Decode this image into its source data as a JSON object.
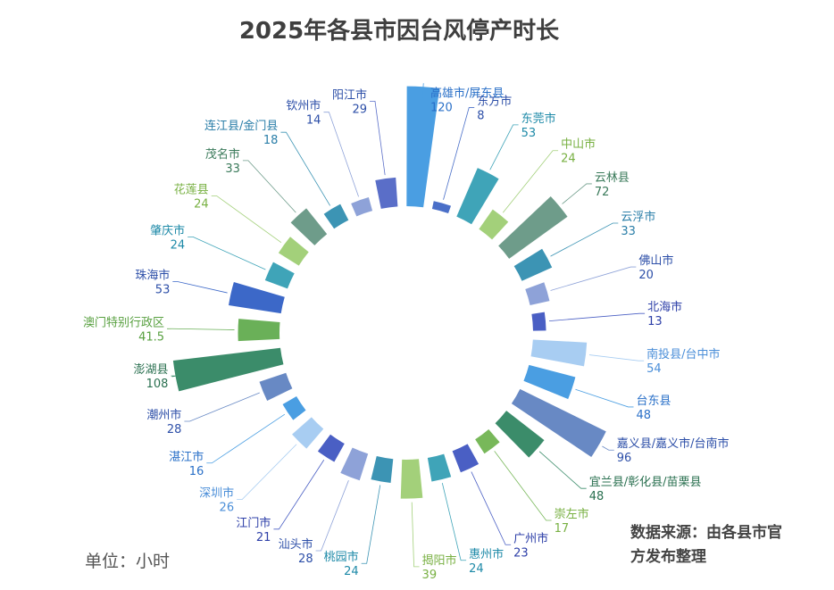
{
  "title": "2025年各县市因台风停产时长",
  "unit_note": "单位：小时",
  "source_note": "数据来源：由各县市官方发布整理",
  "chart_data": {
    "type": "bar",
    "layout": "radial",
    "title": "2025年各县市因台风停产时长",
    "unit": "小时",
    "categories": [
      "东方市",
      "东莞市",
      "中山市",
      "云林县",
      "云浮市",
      "佛山市",
      "北海市",
      "南投县/台中市",
      "台东县",
      "嘉义县/嘉义市/台南市",
      "宜兰县/彰化县/苗栗县",
      "崇左市",
      "广州市",
      "惠州市",
      "揭阳市",
      "桃园市",
      "汕头市",
      "江门市",
      "深圳市",
      "湛江市",
      "潮州市",
      "澎湖县",
      "澳门特别行政区",
      "珠海市",
      "肇庆市",
      "花莲县",
      "茂名市",
      "连江县/金门县",
      "钦州市",
      "阳江市",
      "高雄市/屏东县"
    ],
    "values": [
      8,
      53,
      24,
      72,
      33,
      20,
      13,
      54,
      48,
      96,
      48,
      17,
      23,
      24,
      39,
      24,
      28,
      21,
      26,
      16,
      28,
      108,
      41.5,
      53,
      24,
      24,
      33,
      18,
      14,
      29,
      120
    ],
    "colors": [
      "#4a6fc8",
      "#3fa4b8",
      "#a3d07a",
      "#6e9c8a",
      "#3c94b4",
      "#8ea2d8",
      "#4a5fc4",
      "#a8cdf2",
      "#4a9ee2",
      "#6889c4",
      "#3b8c6a",
      "#78b85a",
      "#4a5fc4",
      "#3fa4b8",
      "#a3d07a",
      "#3c94b4",
      "#8ea2d8",
      "#4a5fc4",
      "#a8cdf2",
      "#4a9ee2",
      "#6889c4",
      "#3b8c6a",
      "#6ab058",
      "#3c68c8",
      "#3fa4b8",
      "#a3d07a",
      "#6e9c8a",
      "#3c94b4",
      "#8ea2d8",
      "#5a6ec8",
      "#4a9ee2"
    ],
    "label_colors": [
      "#2d4fa8",
      "#1e8aa8",
      "#78b042",
      "#3a7a5a",
      "#2a7ea8",
      "#2d4fa8",
      "#2d3fa8",
      "#4a8ed8",
      "#2a70c8",
      "#2d4fa8",
      "#2a7050",
      "#78b042",
      "#2d3fa8",
      "#1e8aa8",
      "#78b042",
      "#1e8aa8",
      "#2d4fa8",
      "#2d3fa8",
      "#4a8ed8",
      "#2a70c8",
      "#2d4fa8",
      "#2a7050",
      "#58a040",
      "#2d4fa8",
      "#1e8aa8",
      "#78b042",
      "#3a7a5a",
      "#2a7ea8",
      "#2d4fa8",
      "#2d4fa8",
      "#2a70c8"
    ]
  }
}
